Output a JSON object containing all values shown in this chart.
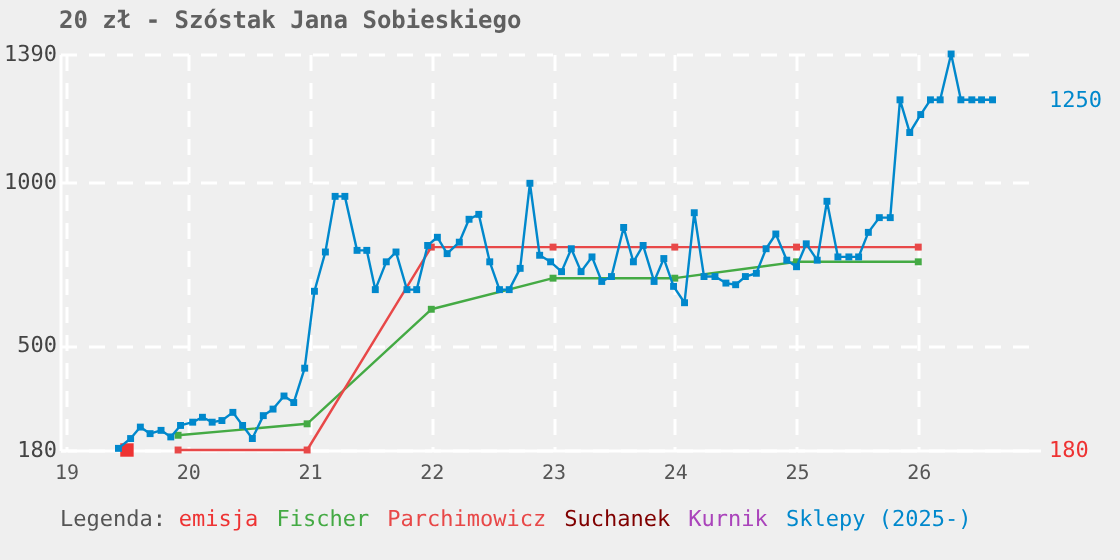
{
  "chart_data": {
    "type": "line",
    "title": "20 zł - Szóstak Jana Sobieskiego",
    "legend_title": "Legenda:",
    "legend": "bottom",
    "grid": true,
    "marker": "square",
    "line_style": "solid",
    "xlim": [
      18.95,
      27.0
    ],
    "xticks": [
      19,
      20,
      21,
      22,
      23,
      24,
      25,
      26
    ],
    "ylim": [
      180,
      1390
    ],
    "yticks": [
      180,
      500,
      1000,
      1390
    ],
    "y2lim": [
      180,
      1390
    ],
    "y2ticks": [
      180,
      1250
    ],
    "series": [
      {
        "name": "emisja",
        "color": "#ee3333",
        "type": "scatter",
        "x": [
          19.5
        ],
        "values": [
          180
        ]
      },
      {
        "name": "Fischer",
        "color": "#44aa44",
        "x": [
          19.92,
          20.98,
          22.0,
          23.0,
          24.0,
          25.0,
          26.0
        ],
        "values": [
          225,
          260,
          610,
          705,
          705,
          755,
          755
        ]
      },
      {
        "name": "Parchimowicz",
        "color": "#e84848",
        "x": [
          19.92,
          20.98,
          22.0,
          23.0,
          24.0,
          25.0,
          26.0
        ],
        "values": [
          180,
          180,
          800,
          800,
          800,
          800,
          800
        ]
      },
      {
        "name": "Suchanek",
        "color": "#800000"
      },
      {
        "name": "Kurnik",
        "color": "#aa44bb"
      },
      {
        "name": "Sklepy (2025-)",
        "color": "#0088cc",
        "x": [
          19.43,
          19.53,
          19.61,
          19.69,
          19.78,
          19.86,
          19.94,
          20.04,
          20.12,
          20.2,
          20.28,
          20.37,
          20.45,
          20.53,
          20.62,
          20.7,
          20.79,
          20.87,
          20.96,
          21.04,
          21.13,
          21.21,
          21.29,
          21.39,
          21.47,
          21.54,
          21.63,
          21.71,
          21.8,
          21.88,
          21.97,
          22.05,
          22.13,
          22.23,
          22.31,
          22.39,
          22.48,
          22.56,
          22.64,
          22.73,
          22.81,
          22.89,
          22.98,
          23.07,
          23.15,
          23.23,
          23.32,
          23.4,
          23.48,
          23.58,
          23.66,
          23.74,
          23.83,
          23.91,
          23.99,
          24.08,
          24.16,
          24.24,
          24.33,
          24.42,
          24.5,
          24.58,
          24.67,
          24.75,
          24.83,
          24.92,
          25.0,
          25.08,
          25.17,
          25.25,
          25.34,
          25.43,
          25.51,
          25.59,
          25.68,
          25.77,
          25.85,
          25.93,
          26.02,
          26.1,
          26.18,
          26.27,
          26.35,
          26.44,
          26.52,
          26.61
        ],
        "values": [
          185,
          215,
          250,
          230,
          240,
          220,
          255,
          265,
          280,
          265,
          270,
          295,
          255,
          215,
          285,
          305,
          345,
          325,
          430,
          665,
          785,
          955,
          955,
          790,
          790,
          670,
          755,
          785,
          670,
          670,
          805,
          830,
          780,
          815,
          885,
          900,
          755,
          670,
          670,
          735,
          995,
          775,
          755,
          725,
          795,
          725,
          770,
          695,
          710,
          860,
          755,
          805,
          695,
          765,
          680,
          630,
          905,
          710,
          710,
          690,
          685,
          710,
          720,
          795,
          840,
          760,
          740,
          810,
          760,
          940,
          770,
          770,
          770,
          845,
          890,
          890,
          1250,
          1150,
          1205,
          1250,
          1250,
          1390,
          1250,
          1250,
          1250,
          1250
        ]
      }
    ]
  }
}
